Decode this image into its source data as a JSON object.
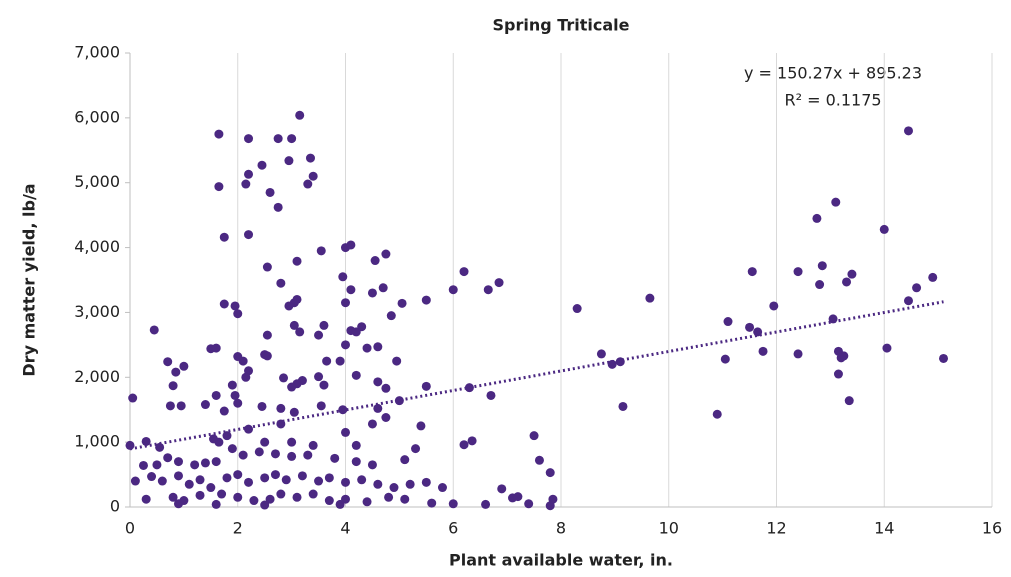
{
  "chart_data": {
    "type": "scatter",
    "title": "Spring Triticale",
    "x_label": "Plant available water, in.",
    "y_label": "Dry matter yield, lb/a",
    "xlim": [
      0,
      16
    ],
    "xticks": [
      0,
      2,
      4,
      6,
      8,
      10,
      12,
      14,
      16
    ],
    "ylim": [
      0,
      7000
    ],
    "yticks": [
      0,
      {
        "value": 1000,
        "label": "1,000"
      },
      {
        "value": 2000,
        "label": "2,000"
      },
      {
        "value": 3000,
        "label": "3,000"
      },
      {
        "value": 4000,
        "label": "4,000"
      },
      {
        "value": 5000,
        "label": "5,000"
      },
      {
        "value": 6000,
        "label": "6,000"
      },
      {
        "value": 7000,
        "label": "7,000"
      }
    ],
    "grid": "x",
    "trendline": {
      "label": "y = 150.27x + 895.23",
      "r2_label": "R² = 0.1175",
      "slope": 150.27,
      "intercept": 895.23
    },
    "series": [
      {
        "color": "#4b2882",
        "x": [
          1.65,
          2.2,
          2.75,
          3.0,
          3.15,
          3.35,
          2.95,
          2.45,
          3.4,
          2.2,
          2.15,
          3.3,
          1.65,
          2.6,
          2.75,
          1.75,
          2.2,
          3.55,
          4.0,
          4.1,
          4.75,
          4.55,
          3.1,
          2.55,
          3.95,
          2.8,
          4.5,
          4.1,
          4.7,
          6.2,
          6.0,
          6.65,
          6.85,
          5.5,
          5.05,
          4.0,
          3.05,
          3.1,
          2.95,
          1.75,
          1.95,
          2.0,
          4.85,
          4.3,
          4.1,
          4.2,
          3.6,
          3.05,
          3.15,
          3.5,
          2.55,
          0.45,
          1.5,
          1.6,
          4.4,
          4.6,
          4.0,
          3.65,
          3.9,
          4.95,
          2.0,
          2.1,
          2.5,
          2.55,
          1.0,
          0.7,
          0.85,
          2.2,
          2.15,
          3.5,
          3.2,
          2.85,
          3.1,
          3.0,
          3.6,
          4.6,
          4.2,
          0.8,
          1.9,
          1.95,
          1.6,
          4.75,
          5.5,
          6.3,
          0.05,
          0.75,
          0.95,
          1.4,
          1.75,
          2.0,
          2.45,
          2.8,
          3.05,
          3.55,
          3.95,
          4.6,
          4.75,
          5.0,
          6.7,
          4.5,
          4.0,
          5.4,
          6.35,
          6.2,
          7.5,
          2.8,
          2.2,
          1.8,
          1.65,
          1.55,
          2.5,
          3.0,
          3.4,
          4.2,
          0.3,
          0.0,
          0.55,
          5.1,
          5.3,
          7.6,
          7.8,
          4.5,
          4.2,
          3.8,
          3.3,
          3.0,
          2.7,
          2.4,
          2.1,
          1.9,
          1.6,
          1.4,
          1.2,
          0.9,
          0.7,
          0.5,
          0.25,
          0.1,
          0.4,
          0.6,
          0.9,
          1.1,
          1.3,
          1.5,
          1.8,
          2.0,
          2.2,
          2.5,
          2.7,
          2.9,
          3.2,
          3.5,
          3.7,
          4.0,
          4.3,
          4.6,
          4.9,
          5.2,
          5.5,
          5.8,
          6.9,
          7.1,
          7.2,
          0.3,
          0.8,
          1.0,
          1.3,
          1.7,
          2.0,
          2.3,
          2.6,
          2.8,
          3.1,
          3.4,
          3.7,
          4.0,
          4.4,
          4.8,
          5.1,
          5.6,
          6.0,
          6.6,
          7.4,
          7.85,
          7.8,
          2.5,
          3.9,
          1.6,
          0.9,
          8.3,
          8.75,
          8.95,
          9.1,
          9.15,
          9.65,
          10.9,
          11.05,
          11.1,
          11.5,
          11.55,
          11.65,
          11.75,
          11.95,
          12.4,
          12.4,
          12.75,
          12.8,
          12.85,
          13.05,
          13.1,
          13.15,
          13.15,
          13.2,
          13.25,
          13.3,
          13.35,
          13.4,
          14.0,
          14.05,
          14.45,
          14.45,
          14.6,
          14.9,
          15.1
        ],
        "values": [
          5750,
          5680,
          5680,
          5680,
          6040,
          5380,
          5340,
          5270,
          5100,
          5130,
          4980,
          4980,
          4940,
          4850,
          4620,
          4160,
          4200,
          3950,
          4000,
          4040,
          3900,
          3800,
          3790,
          3700,
          3550,
          3450,
          3300,
          3350,
          3380,
          3630,
          3350,
          3350,
          3460,
          3190,
          3140,
          3150,
          3150,
          3200,
          3100,
          3130,
          3100,
          2980,
          2950,
          2780,
          2720,
          2700,
          2800,
          2800,
          2700,
          2650,
          2650,
          2730,
          2440,
          2450,
          2450,
          2470,
          2500,
          2250,
          2250,
          2250,
          2320,
          2250,
          2350,
          2330,
          2170,
          2240,
          2080,
          2100,
          2000,
          2010,
          1950,
          1990,
          1900,
          1850,
          1880,
          1930,
          2030,
          1870,
          1880,
          1720,
          1720,
          1830,
          1860,
          1840,
          1680,
          1560,
          1560,
          1580,
          1480,
          1600,
          1550,
          1520,
          1460,
          1560,
          1500,
          1520,
          1380,
          1640,
          1720,
          1280,
          1150,
          1250,
          1020,
          960,
          1100,
          1280,
          1200,
          1100,
          1000,
          1050,
          1000,
          1000,
          950,
          950,
          1010,
          950,
          920,
          730,
          900,
          720,
          530,
          650,
          700,
          750,
          800,
          780,
          820,
          850,
          800,
          900,
          700,
          680,
          650,
          700,
          760,
          650,
          640,
          400,
          470,
          400,
          480,
          350,
          420,
          300,
          450,
          500,
          380,
          450,
          500,
          420,
          480,
          400,
          450,
          380,
          420,
          350,
          300,
          350,
          380,
          300,
          280,
          140,
          160,
          120,
          150,
          100,
          180,
          200,
          150,
          100,
          120,
          200,
          150,
          200,
          100,
          120,
          80,
          150,
          120,
          60,
          50,
          40,
          50,
          120,
          20,
          30,
          40,
          40,
          50,
          3060,
          2360,
          2200,
          2240,
          1550,
          3220,
          1430,
          2280,
          2860,
          2770,
          3630,
          2700,
          2400,
          3100,
          3630,
          2360,
          4450,
          3430,
          3720,
          2900,
          4700,
          2400,
          2050,
          2300,
          2330,
          3470,
          1640,
          3590,
          4280,
          2450,
          3180,
          5800,
          3380,
          3540,
          2290
        ]
      }
    ]
  }
}
